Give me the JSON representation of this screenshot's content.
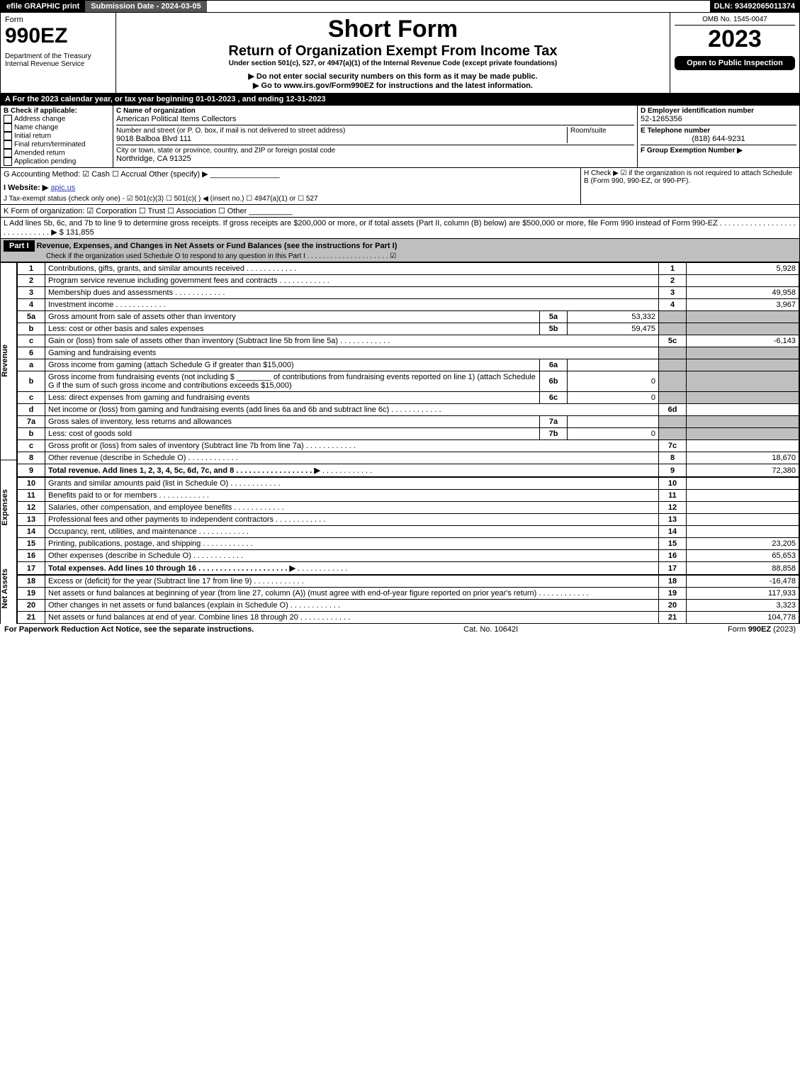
{
  "header": {
    "efile": "efile GRAPHIC print",
    "submission": "Submission Date - 2024-03-05",
    "dln": "DLN: 93492065011374"
  },
  "top": {
    "form_label": "Form",
    "form_no": "990EZ",
    "dept": "Department of the Treasury\nInternal Revenue Service",
    "title1": "Short Form",
    "title2": "Return of Organization Exempt From Income Tax",
    "subtitle": "Under section 501(c), 527, or 4947(a)(1) of the Internal Revenue Code (except private foundations)",
    "bullet1": "▶ Do not enter social security numbers on this form as it may be made public.",
    "bullet2": "▶ Go to www.irs.gov/Form990EZ for instructions and the latest information.",
    "omb": "OMB No. 1545-0047",
    "year": "2023",
    "inspection": "Open to Public Inspection"
  },
  "lineA": "A  For the 2023 calendar year, or tax year beginning 01-01-2023 , and ending 12-31-2023",
  "sectionB": {
    "label": "B  Check if applicable:",
    "items": [
      "Address change",
      "Name change",
      "Initial return",
      "Final return/terminated",
      "Amended return",
      "Application pending"
    ]
  },
  "sectionC": {
    "name_label": "C Name of organization",
    "name": "American Political Items Collectors",
    "street_label": "Number and street (or P. O. box, if mail is not delivered to street address)",
    "street": "9018 Balboa Blvd 111",
    "room_label": "Room/suite",
    "city_label": "City or town, state or province, country, and ZIP or foreign postal code",
    "city": "Northridge, CA  91325"
  },
  "sectionD": {
    "label": "D Employer identification number",
    "value": "52-1265356"
  },
  "sectionE": {
    "label": "E Telephone number",
    "value": "(818) 644-9231"
  },
  "sectionF": {
    "label": "F Group Exemption Number  ▶"
  },
  "lineG": "G Accounting Method:   ☑ Cash   ☐ Accrual   Other (specify) ▶ ________________",
  "lineH": "H   Check ▶ ☑ if the organization is not required to attach Schedule B (Form 990, 990-EZ, or 990-PF).",
  "lineI_label": "I Website: ▶",
  "lineI_val": "apic.us",
  "lineJ": "J Tax-exempt status (check only one) - ☑ 501(c)(3)  ☐ 501(c)(  ) ◀ (insert no.)  ☐ 4947(a)(1) or  ☐ 527",
  "lineK": "K Form of organization:   ☑ Corporation   ☐ Trust   ☐ Association   ☐ Other  __________",
  "lineL": {
    "text": "L Add lines 5b, 6c, and 7b to line 9 to determine gross receipts. If gross receipts are $200,000 or more, or if total assets (Part II, column (B) below) are $500,000 or more, file Form 990 instead of Form 990-EZ  .  .  .  .  .  .  .  .  .  .  .  .  .  .  .  .  .  .  .  .  .  .  .  .  .  .  .  .  .  ▶ $",
    "amount": "131,855"
  },
  "partI": {
    "label": "Part I",
    "title": "Revenue, Expenses, and Changes in Net Assets or Fund Balances (see the instructions for Part I)",
    "check_text": "Check if the organization used Schedule O to respond to any question in this Part I  .  .  .  .  .  .  .  .  .  .  .  .  .  .  .  .  .  .  .  .  .  ☑"
  },
  "sections": {
    "revenue": "Revenue",
    "expenses": "Expenses",
    "netassets": "Net Assets"
  },
  "lines": [
    {
      "n": "1",
      "d": "Contributions, gifts, grants, and similar amounts received",
      "ln": "1",
      "v": "5,928"
    },
    {
      "n": "2",
      "d": "Program service revenue including government fees and contracts",
      "ln": "2",
      "v": ""
    },
    {
      "n": "3",
      "d": "Membership dues and assessments",
      "ln": "3",
      "v": "49,958"
    },
    {
      "n": "4",
      "d": "Investment income",
      "ln": "4",
      "v": "3,967"
    },
    {
      "n": "5a",
      "d": "Gross amount from sale of assets other than inventory",
      "mid_ln": "5a",
      "mid_v": "53,332"
    },
    {
      "n": "b",
      "d": "Less: cost or other basis and sales expenses",
      "mid_ln": "5b",
      "mid_v": "59,475"
    },
    {
      "n": "c",
      "d": "Gain or (loss) from sale of assets other than inventory (Subtract line 5b from line 5a)",
      "ln": "5c",
      "v": "-6,143"
    },
    {
      "n": "6",
      "d": "Gaming and fundraising events"
    },
    {
      "n": "a",
      "d": "Gross income from gaming (attach Schedule G if greater than $15,000)",
      "mid_ln": "6a",
      "mid_v": ""
    },
    {
      "n": "b",
      "d": "Gross income from fundraising events (not including $ ________ of contributions from fundraising events reported on line 1) (attach Schedule G if the sum of such gross income and contributions exceeds $15,000)",
      "mid_ln": "6b",
      "mid_v": "0"
    },
    {
      "n": "c",
      "d": "Less: direct expenses from gaming and fundraising events",
      "mid_ln": "6c",
      "mid_v": "0"
    },
    {
      "n": "d",
      "d": "Net income or (loss) from gaming and fundraising events (add lines 6a and 6b and subtract line 6c)",
      "ln": "6d",
      "v": ""
    },
    {
      "n": "7a",
      "d": "Gross sales of inventory, less returns and allowances",
      "mid_ln": "7a",
      "mid_v": ""
    },
    {
      "n": "b",
      "d": "Less: cost of goods sold",
      "mid_ln": "7b",
      "mid_v": "0"
    },
    {
      "n": "c",
      "d": "Gross profit or (loss) from sales of inventory (Subtract line 7b from line 7a)",
      "ln": "7c",
      "v": ""
    },
    {
      "n": "8",
      "d": "Other revenue (describe in Schedule O)",
      "ln": "8",
      "v": "18,670"
    },
    {
      "n": "9",
      "d": "Total revenue. Add lines 1, 2, 3, 4, 5c, 6d, 7c, and 8   .  .  .  .  .  .  .  .  .  .  .  .  .  .  .  .  .  .  ▶",
      "ln": "9",
      "v": "72,380",
      "bold": true
    }
  ],
  "exp_lines": [
    {
      "n": "10",
      "d": "Grants and similar amounts paid (list in Schedule O)",
      "ln": "10",
      "v": ""
    },
    {
      "n": "11",
      "d": "Benefits paid to or for members",
      "ln": "11",
      "v": ""
    },
    {
      "n": "12",
      "d": "Salaries, other compensation, and employee benefits",
      "ln": "12",
      "v": ""
    },
    {
      "n": "13",
      "d": "Professional fees and other payments to independent contractors",
      "ln": "13",
      "v": ""
    },
    {
      "n": "14",
      "d": "Occupancy, rent, utilities, and maintenance",
      "ln": "14",
      "v": ""
    },
    {
      "n": "15",
      "d": "Printing, publications, postage, and shipping",
      "ln": "15",
      "v": "23,205"
    },
    {
      "n": "16",
      "d": "Other expenses (describe in Schedule O)",
      "ln": "16",
      "v": "65,653"
    },
    {
      "n": "17",
      "d": "Total expenses. Add lines 10 through 16   .  .  .  .  .  .  .  .  .  .  .  .  .  .  .  .  .  .  .  .  .  ▶",
      "ln": "17",
      "v": "88,858",
      "bold": true
    }
  ],
  "na_lines": [
    {
      "n": "18",
      "d": "Excess or (deficit) for the year (Subtract line 17 from line 9)",
      "ln": "18",
      "v": "-16,478"
    },
    {
      "n": "19",
      "d": "Net assets or fund balances at beginning of year (from line 27, column (A)) (must agree with end-of-year figure reported on prior year's return)",
      "ln": "19",
      "v": "117,933"
    },
    {
      "n": "20",
      "d": "Other changes in net assets or fund balances (explain in Schedule O)",
      "ln": "20",
      "v": "3,323"
    },
    {
      "n": "21",
      "d": "Net assets or fund balances at end of year. Combine lines 18 through 20",
      "ln": "21",
      "v": "104,778"
    }
  ],
  "footer": {
    "left": "For Paperwork Reduction Act Notice, see the separate instructions.",
    "mid": "Cat. No. 10642I",
    "right": "Form 990-EZ (2023)"
  },
  "colors": {
    "black": "#000000",
    "grey": "#bfbfbf",
    "link": "#2a3fb0"
  }
}
